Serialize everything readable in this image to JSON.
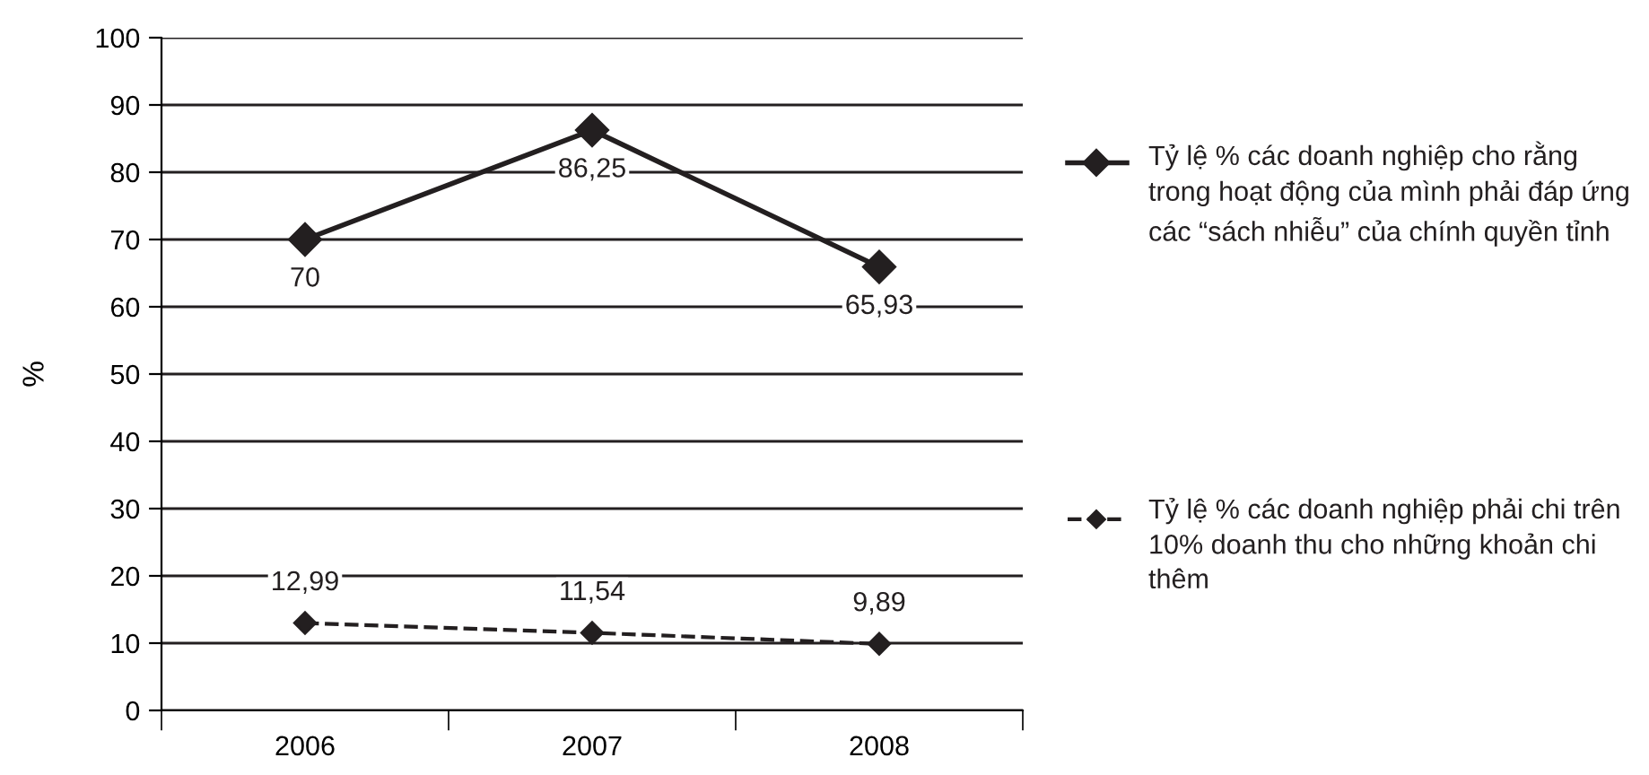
{
  "chart_data": {
    "type": "line",
    "ylabel": "%",
    "categories": [
      "2006",
      "2007",
      "2008"
    ],
    "series": [
      {
        "name": "Tỷ lệ % các doanh nghiệp cho rằng trong hoạt động của mình phải đáp ứng các “sách nhiễu” của chính quyền tỉnh",
        "color": "#231f20",
        "values": [
          70,
          86.25,
          65.93
        ],
        "line_style": "solid"
      },
      {
        "name": "Tỷ lệ % các doanh nghiệp phải chi trên 10% doanh thu cho những khoản chi thêm",
        "color": "#231f20",
        "values": [
          12.99,
          11.54,
          9.89
        ],
        "line_style": "dashed"
      }
    ],
    "value_labels": [
      [
        "70",
        "86,25",
        "65,93"
      ],
      [
        "12,99",
        "11,54",
        "9,89"
      ]
    ],
    "ylim": [
      0,
      100
    ],
    "yticks": [
      0,
      10,
      20,
      30,
      40,
      50,
      60,
      70,
      80,
      90,
      100
    ],
    "grid": "y",
    "legend": "right",
    "marker": "diamond"
  }
}
